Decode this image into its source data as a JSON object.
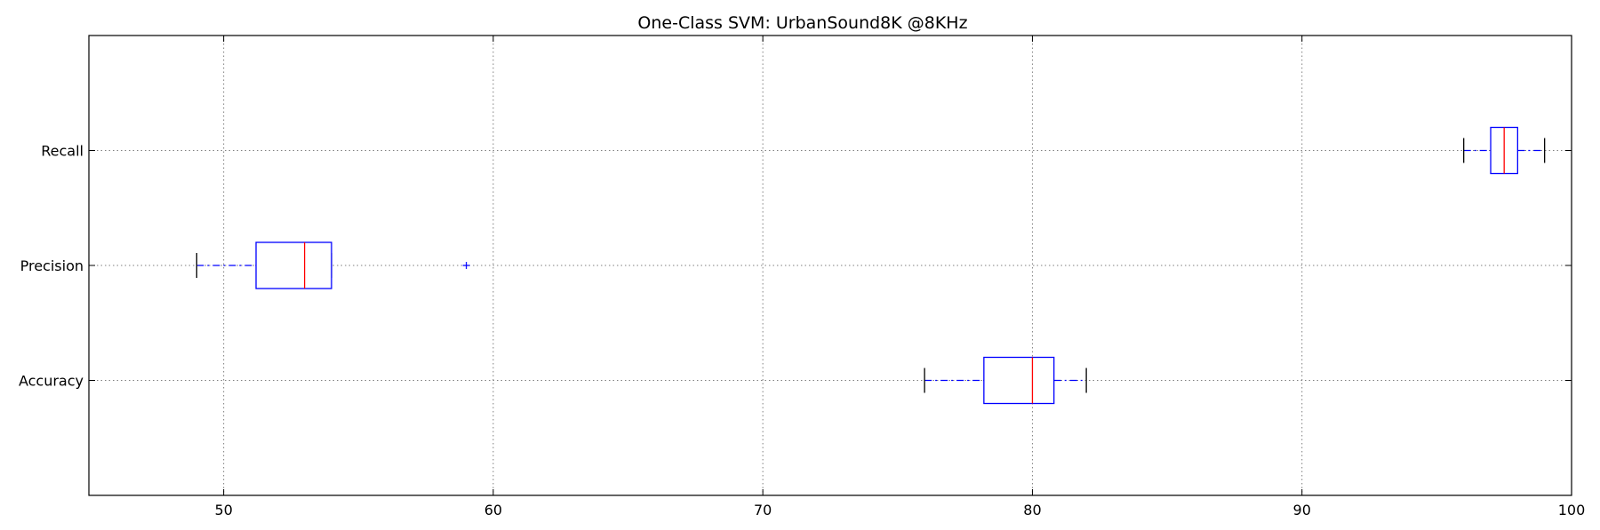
{
  "chart_data": {
    "type": "boxplot",
    "orientation": "horizontal",
    "title": "One-Class SVM: UrbanSound8K @8KHz",
    "xlabel": "",
    "ylabel": "",
    "xlim": [
      45,
      100
    ],
    "xticks": [
      50,
      60,
      70,
      80,
      90,
      100
    ],
    "grid": true,
    "categories": [
      "Accuracy",
      "Precision",
      "Recall"
    ],
    "boxes": [
      {
        "label": "Accuracy",
        "whisker_low": 76.0,
        "q1": 78.2,
        "median": 80.0,
        "q3": 80.8,
        "whisker_high": 82.0,
        "outliers": []
      },
      {
        "label": "Precision",
        "whisker_low": 49.0,
        "q1": 51.2,
        "median": 53.0,
        "q3": 54.0,
        "whisker_high": 54.0,
        "outliers": [
          59.0
        ]
      },
      {
        "label": "Recall",
        "whisker_low": 96.0,
        "q1": 97.0,
        "median": 97.5,
        "q3": 98.0,
        "whisker_high": 99.0,
        "outliers": []
      }
    ],
    "colors": {
      "box": "#0000ff",
      "median": "#ff0000",
      "whisker": "#0000ff",
      "cap": "#000000",
      "flier": "#0000ff",
      "grid": "#808080"
    }
  }
}
